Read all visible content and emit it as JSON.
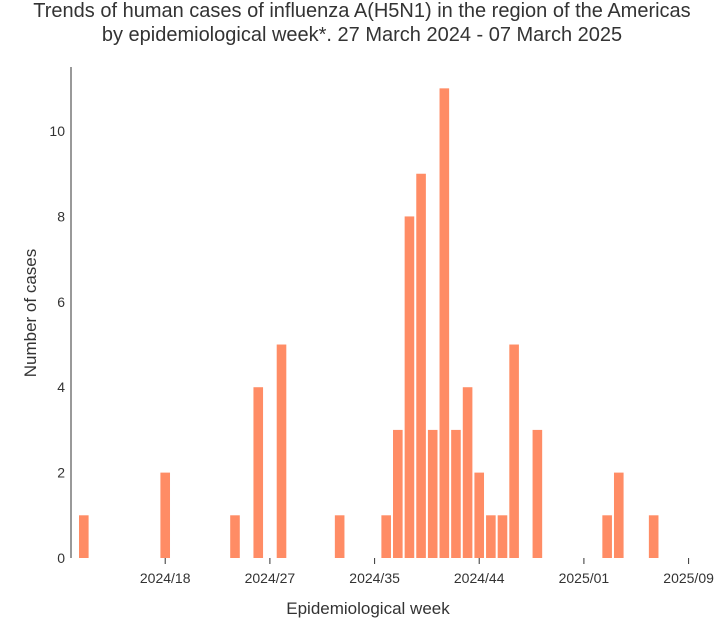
{
  "chart_data": {
    "type": "bar",
    "title_line1": "Trends of human cases of influenza A(H5N1) in the region of the Americas",
    "title_line2": "by epidemiological week*. 27 March 2024 - 07 March 2025",
    "xlabel": "Epidemiological week",
    "ylabel": "Number of cases",
    "ylim": [
      0,
      11.5
    ],
    "yticks": [
      0,
      2,
      4,
      6,
      8,
      10
    ],
    "bar_color": "#FF8C65",
    "axis_color": "#333333",
    "grid": false,
    "xticks": [
      {
        "label": "2024/18",
        "index": 7
      },
      {
        "label": "2024/27",
        "index": 16
      },
      {
        "label": "2024/35",
        "index": 25
      },
      {
        "label": "2024/44",
        "index": 34
      },
      {
        "label": "2025/01",
        "index": 43
      },
      {
        "label": "2025/09",
        "index": 52
      }
    ],
    "values": [
      1,
      0,
      0,
      0,
      0,
      0,
      0,
      2,
      0,
      0,
      0,
      0,
      0,
      1,
      0,
      4,
      0,
      5,
      0,
      0,
      0,
      0,
      1,
      0,
      0,
      0,
      1,
      3,
      8,
      9,
      3,
      11,
      3,
      4,
      2,
      1,
      1,
      5,
      0,
      3,
      0,
      0,
      0,
      0,
      0,
      1,
      2,
      0,
      0,
      1
    ]
  }
}
